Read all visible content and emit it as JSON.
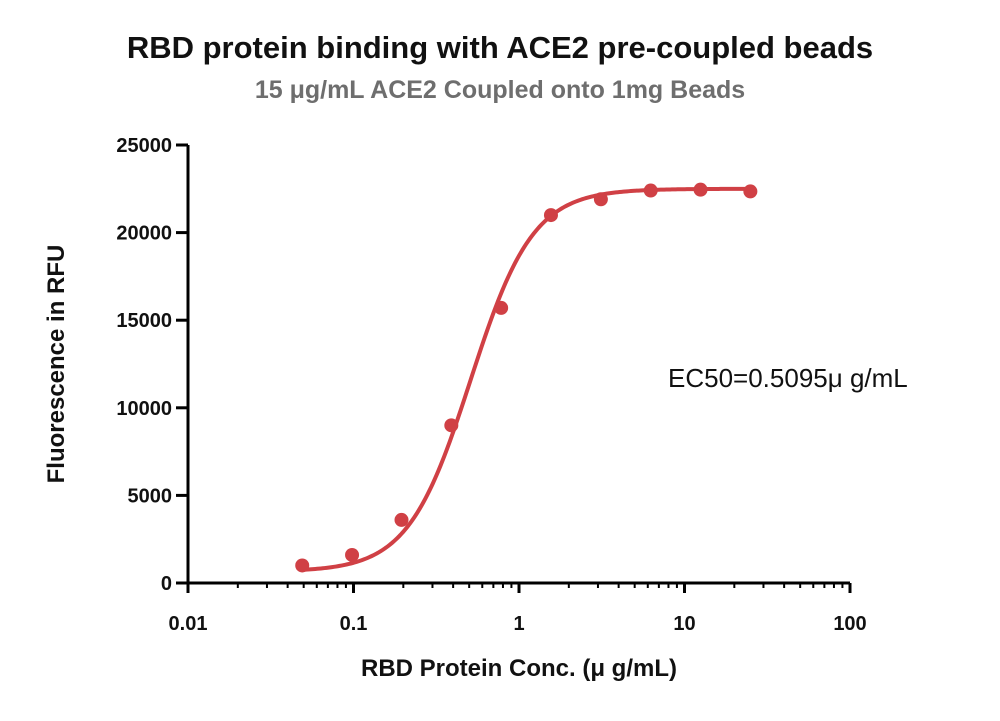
{
  "chart_data": {
    "type": "scatter",
    "title": "RBD protein binding with ACE2 pre-coupled beads",
    "subtitle": "15 μg/mL ACE2 Coupled onto 1mg Beads",
    "xlabel": "RBD Protein Conc. (μ g/mL)",
    "ylabel": "Fluorescence in RFU",
    "x_scale": "log",
    "xlim": [
      0.01,
      100
    ],
    "ylim": [
      0,
      25000
    ],
    "x_ticks": [
      0.01,
      0.1,
      1,
      10,
      100
    ],
    "x_tick_labels": [
      "0.01",
      "0.1",
      "1",
      "10",
      "100"
    ],
    "y_ticks": [
      0,
      5000,
      10000,
      15000,
      20000,
      25000
    ],
    "y_tick_labels": [
      "0",
      "5000",
      "10000",
      "15000",
      "20000",
      "25000"
    ],
    "grid": false,
    "color": "#d04045",
    "series": [
      {
        "x": [
          0.049,
          0.098,
          0.195,
          0.39,
          0.78,
          1.56,
          3.125,
          6.25,
          12.5,
          25
        ],
        "y": [
          1000,
          1600,
          3600,
          9000,
          15700,
          21000,
          21900,
          22400,
          22450,
          22350
        ]
      }
    ],
    "fit": {
      "model": "4PL",
      "bottom": 650,
      "top": 22500,
      "ec50": 0.5095,
      "hill": 2.3
    },
    "annotations": [
      "EC50=0.5095μ g/mL"
    ]
  }
}
